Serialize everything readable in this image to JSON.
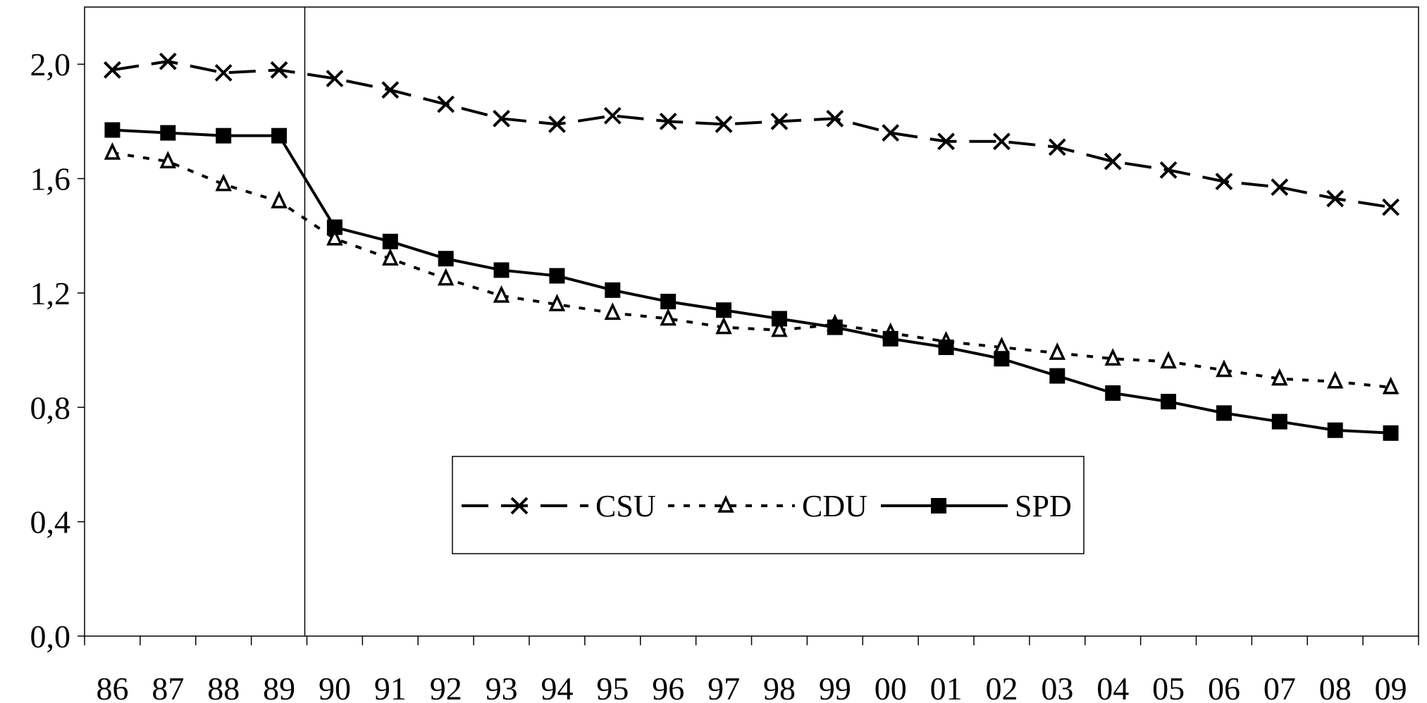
{
  "chart_data": {
    "type": "line",
    "title": "",
    "xlabel": "",
    "ylabel": "",
    "categories": [
      "86",
      "87",
      "88",
      "89",
      "90",
      "91",
      "92",
      "93",
      "94",
      "95",
      "96",
      "97",
      "98",
      "99",
      "00",
      "01",
      "02",
      "03",
      "04",
      "05",
      "06",
      "07",
      "08",
      "09"
    ],
    "ylim": [
      0,
      2.2
    ],
    "yticks": [
      "0,0",
      "0,4",
      "0,8",
      "1,2",
      "1,6",
      "2,0"
    ],
    "grid": false,
    "legend": "center, inside plot",
    "annotations": [
      {
        "type": "vertical-line",
        "between": [
          "89",
          "90"
        ]
      }
    ],
    "series": [
      {
        "name": "CSU",
        "style": "dashed",
        "marker": "x",
        "color": "#000000",
        "values": [
          1.98,
          2.01,
          1.97,
          1.98,
          1.95,
          1.91,
          1.86,
          1.81,
          1.79,
          1.82,
          1.8,
          1.79,
          1.8,
          1.81,
          1.76,
          1.73,
          1.73,
          1.71,
          1.66,
          1.63,
          1.59,
          1.57,
          1.53,
          1.5
        ]
      },
      {
        "name": "CDU",
        "style": "dotted",
        "marker": "triangle-open",
        "color": "#000000",
        "values": [
          1.69,
          1.66,
          1.58,
          1.52,
          1.39,
          1.32,
          1.25,
          1.19,
          1.16,
          1.13,
          1.11,
          1.08,
          1.07,
          1.09,
          1.06,
          1.03,
          1.01,
          0.99,
          0.97,
          0.96,
          0.93,
          0.9,
          0.89,
          0.87
        ]
      },
      {
        "name": "SPD",
        "style": "solid",
        "marker": "square-filled",
        "color": "#000000",
        "values": [
          1.77,
          1.76,
          1.75,
          1.75,
          1.43,
          1.38,
          1.32,
          1.28,
          1.26,
          1.21,
          1.17,
          1.14,
          1.11,
          1.08,
          1.04,
          1.01,
          0.97,
          0.91,
          0.85,
          0.82,
          0.78,
          0.75,
          0.72,
          0.71
        ]
      }
    ]
  }
}
